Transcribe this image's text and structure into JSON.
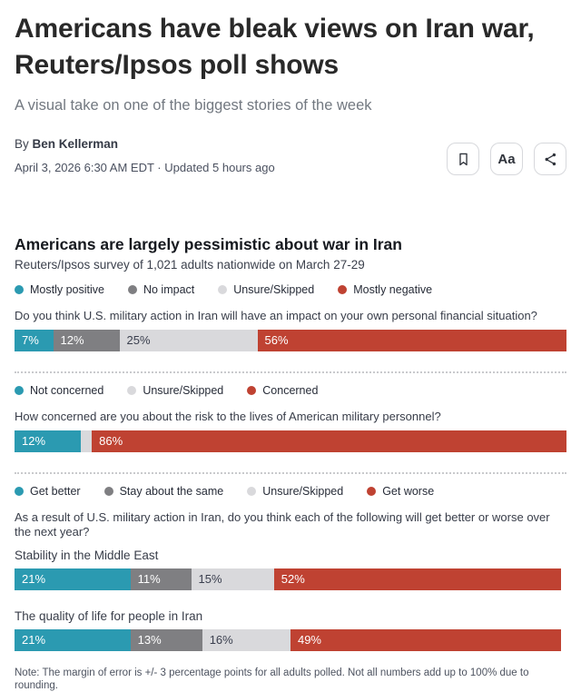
{
  "article": {
    "headline": "Americans have bleak views on Iran war, Reuters/Ipsos poll shows",
    "subtitle": "A visual take on one of the biggest stories of the week",
    "byline_prefix": "By ",
    "author": "Ben Kellerman",
    "dateline": "April 3, 2026 6:30 AM EDT",
    "separator": " · ",
    "updated": "Updated 5 hours ago",
    "actions": {
      "bookmark_icon": "bookmark",
      "text_size_label": "Aa",
      "share_icon": "share-nodes"
    }
  },
  "chart_data": {
    "type": "bar",
    "orientation": "horizontal-stacked",
    "title": "Americans are largely pessimistic about war in Iran",
    "subtitle": "Reuters/Ipsos survey of 1,021 adults nationwide on March 27-29",
    "note": "Note:  The margin of error is +/- 3 percentage points for all adults polled. Not all numbers add up to 100% due to rounding.",
    "palette": {
      "teal": "#2b9ab1",
      "gray": "#7f7f82",
      "light_gray": "#d9d9dc",
      "red": "#bf4232",
      "dark_text": "#3a3f4e",
      "light_text": "#ffffff"
    },
    "groups": [
      {
        "legend": [
          {
            "label": "Mostly positive",
            "color": "#2b9ab1"
          },
          {
            "label": "No impact",
            "color": "#7f7f82"
          },
          {
            "label": "Unsure/Skipped",
            "color": "#d9d9dc"
          },
          {
            "label": "Mostly negative",
            "color": "#bf4232"
          }
        ],
        "questions": [
          {
            "text": "Do you think U.S. military action in Iran will have an impact on your own personal financial situation?",
            "bars": [
              {
                "label": "",
                "segments": [
                  {
                    "value": 7,
                    "display": "7%",
                    "color": "#2b9ab1",
                    "text_color": "#ffffff"
                  },
                  {
                    "value": 12,
                    "display": "12%",
                    "color": "#7f7f82",
                    "text_color": "#ffffff"
                  },
                  {
                    "value": 25,
                    "display": "25%",
                    "color": "#d9d9dc",
                    "text_color": "#3a3f4e"
                  },
                  {
                    "value": 56,
                    "display": "56%",
                    "color": "#bf4232",
                    "text_color": "#ffffff"
                  }
                ]
              }
            ]
          }
        ]
      },
      {
        "legend": [
          {
            "label": "Not concerned",
            "color": "#2b9ab1"
          },
          {
            "label": "Unsure/Skipped",
            "color": "#d9d9dc"
          },
          {
            "label": "Concerned",
            "color": "#bf4232"
          }
        ],
        "questions": [
          {
            "text": "How concerned are you about the risk to the lives of American military personnel?",
            "bars": [
              {
                "label": "",
                "segments": [
                  {
                    "value": 12,
                    "display": "12%",
                    "color": "#2b9ab1",
                    "text_color": "#ffffff"
                  },
                  {
                    "value": 2,
                    "display": "",
                    "color": "#d9d9dc",
                    "text_color": "#3a3f4e"
                  },
                  {
                    "value": 86,
                    "display": "86%",
                    "color": "#bf4232",
                    "text_color": "#ffffff"
                  }
                ]
              }
            ]
          }
        ]
      },
      {
        "legend": [
          {
            "label": "Get better",
            "color": "#2b9ab1"
          },
          {
            "label": "Stay about the same",
            "color": "#7f7f82"
          },
          {
            "label": "Unsure/Skipped",
            "color": "#d9d9dc"
          },
          {
            "label": "Get worse",
            "color": "#bf4232"
          }
        ],
        "questions": [
          {
            "text": "As a result of U.S. military action in Iran, do you think each of the following will get better or worse over the next year?",
            "bars": [
              {
                "label": "Stability in the Middle East",
                "segments": [
                  {
                    "value": 21,
                    "display": "21%",
                    "color": "#2b9ab1",
                    "text_color": "#ffffff"
                  },
                  {
                    "value": 11,
                    "display": "11%",
                    "color": "#7f7f82",
                    "text_color": "#ffffff"
                  },
                  {
                    "value": 15,
                    "display": "15%",
                    "color": "#d9d9dc",
                    "text_color": "#3a3f4e"
                  },
                  {
                    "value": 52,
                    "display": "52%",
                    "color": "#bf4232",
                    "text_color": "#ffffff"
                  }
                ]
              },
              {
                "label": "The quality of life for people in Iran",
                "segments": [
                  {
                    "value": 21,
                    "display": "21%",
                    "color": "#2b9ab1",
                    "text_color": "#ffffff"
                  },
                  {
                    "value": 13,
                    "display": "13%",
                    "color": "#7f7f82",
                    "text_color": "#ffffff"
                  },
                  {
                    "value": 16,
                    "display": "16%",
                    "color": "#d9d9dc",
                    "text_color": "#3a3f4e"
                  },
                  {
                    "value": 49,
                    "display": "49%",
                    "color": "#bf4232",
                    "text_color": "#ffffff"
                  }
                ]
              }
            ]
          }
        ]
      }
    ]
  }
}
